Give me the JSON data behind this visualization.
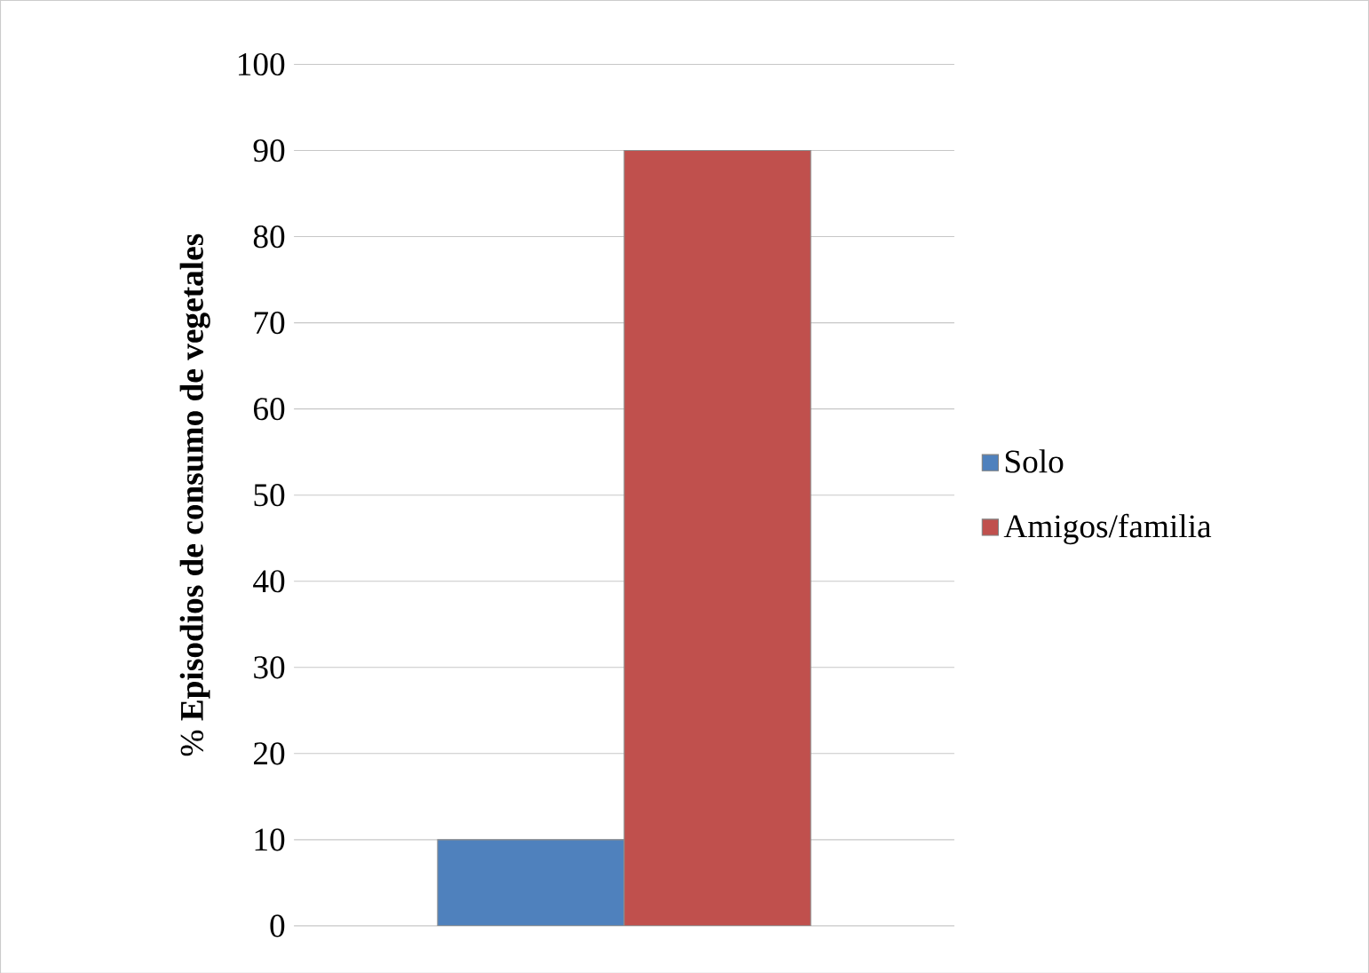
{
  "chart_data": {
    "type": "bar",
    "ylabel": "% **Episodios de consumo de vegetales**",
    "categories": [
      null
    ],
    "series": [
      {
        "name": "Solo",
        "color": "#4f81bd",
        "values": [
          10
        ]
      },
      {
        "name": "Amigos/familia",
        "color": "#c0504d",
        "values": [
          90
        ]
      }
    ],
    "ylim": [
      0,
      100
    ],
    "yticks": [
      0,
      10,
      20,
      30,
      40,
      50,
      60,
      70,
      80,
      90,
      100
    ],
    "grid": "y",
    "legend": "right"
  }
}
